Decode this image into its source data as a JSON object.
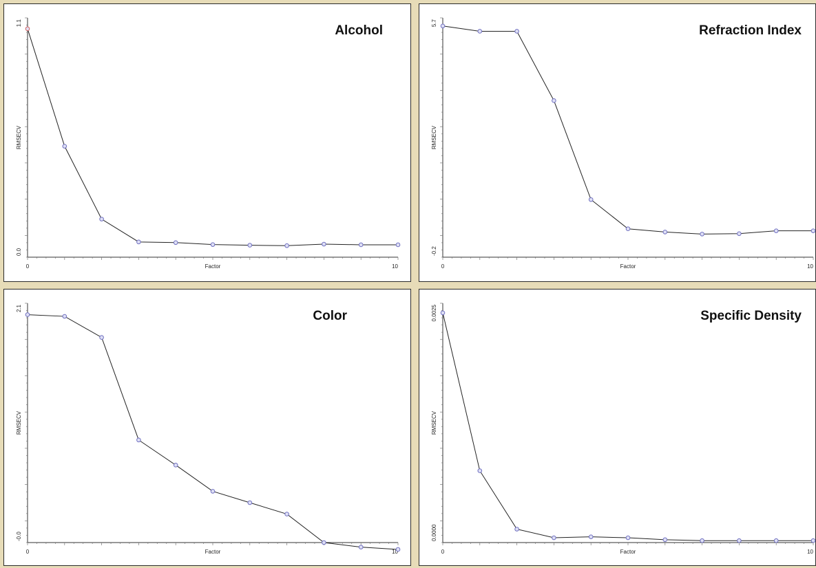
{
  "chart_data": [
    {
      "type": "line",
      "title": "Alcohol",
      "xlabel": "Factor",
      "ylabel": "RMSECV",
      "xlim": [
        0,
        10
      ],
      "ylim": [
        0.0,
        1.1
      ],
      "x_tick_labels": [
        "0",
        "10"
      ],
      "y_tick_labels": [
        "0.0",
        "1.1"
      ],
      "grid": false,
      "series": [
        {
          "x": [
            0,
            1,
            2,
            3,
            4,
            5,
            6,
            7,
            8,
            9,
            10
          ],
          "values": [
            1.05,
            0.51,
            0.175,
            0.07,
            0.067,
            0.058,
            0.055,
            0.053,
            0.06,
            0.057,
            0.057
          ]
        }
      ],
      "first_marker_color": "#d06060",
      "marker_color": "#7070c0"
    },
    {
      "type": "line",
      "title": "Refraction Index",
      "xlabel": "Factor",
      "ylabel": "RMSECV",
      "xlim": [
        0,
        10
      ],
      "ylim": [
        -0.2,
        5.7
      ],
      "x_tick_labels": [
        "0",
        "10"
      ],
      "y_tick_labels": [
        "-0.2",
        "5.7"
      ],
      "grid": false,
      "series": [
        {
          "x": [
            0,
            1,
            2,
            3,
            4,
            5,
            6,
            7,
            8,
            9,
            10
          ],
          "values": [
            5.5,
            5.37,
            5.37,
            3.66,
            1.22,
            0.5,
            0.42,
            0.37,
            0.38,
            0.45,
            0.45
          ]
        }
      ],
      "marker_color": "#7070c0"
    },
    {
      "type": "line",
      "title": "Color",
      "xlabel": "Factor",
      "ylabel": "RMSECV",
      "xlim": [
        0,
        10
      ],
      "ylim": [
        -0.0,
        2.1
      ],
      "x_tick_labels": [
        "0",
        "10"
      ],
      "y_tick_labels": [
        "-0.0",
        "2.1"
      ],
      "grid": false,
      "series": [
        {
          "x": [
            0,
            1,
            2,
            3,
            4,
            5,
            6,
            7,
            8,
            9,
            10
          ],
          "values": [
            2.0,
            1.985,
            1.8,
            0.9,
            0.68,
            0.45,
            0.35,
            0.25,
            0.0,
            -0.04,
            -0.06
          ]
        }
      ],
      "marker_color": "#7070c0"
    },
    {
      "type": "line",
      "title": "Specific Density",
      "xlabel": "Factor",
      "ylabel": "RMSECV",
      "xlim": [
        0,
        10
      ],
      "ylim": [
        0.0,
        0.0025
      ],
      "x_tick_labels": [
        "0",
        "10"
      ],
      "y_tick_labels": [
        "0.0000",
        "0.0025"
      ],
      "grid": false,
      "series": [
        {
          "x": [
            0,
            1,
            2,
            3,
            4,
            5,
            6,
            7,
            8,
            9,
            10
          ],
          "values": [
            0.0024,
            0.00075,
            0.00014,
            5e-05,
            6e-05,
            5e-05,
            3e-05,
            2e-05,
            2e-05,
            2e-05,
            2e-05
          ]
        }
      ],
      "marker_color": "#7070c0"
    }
  ]
}
